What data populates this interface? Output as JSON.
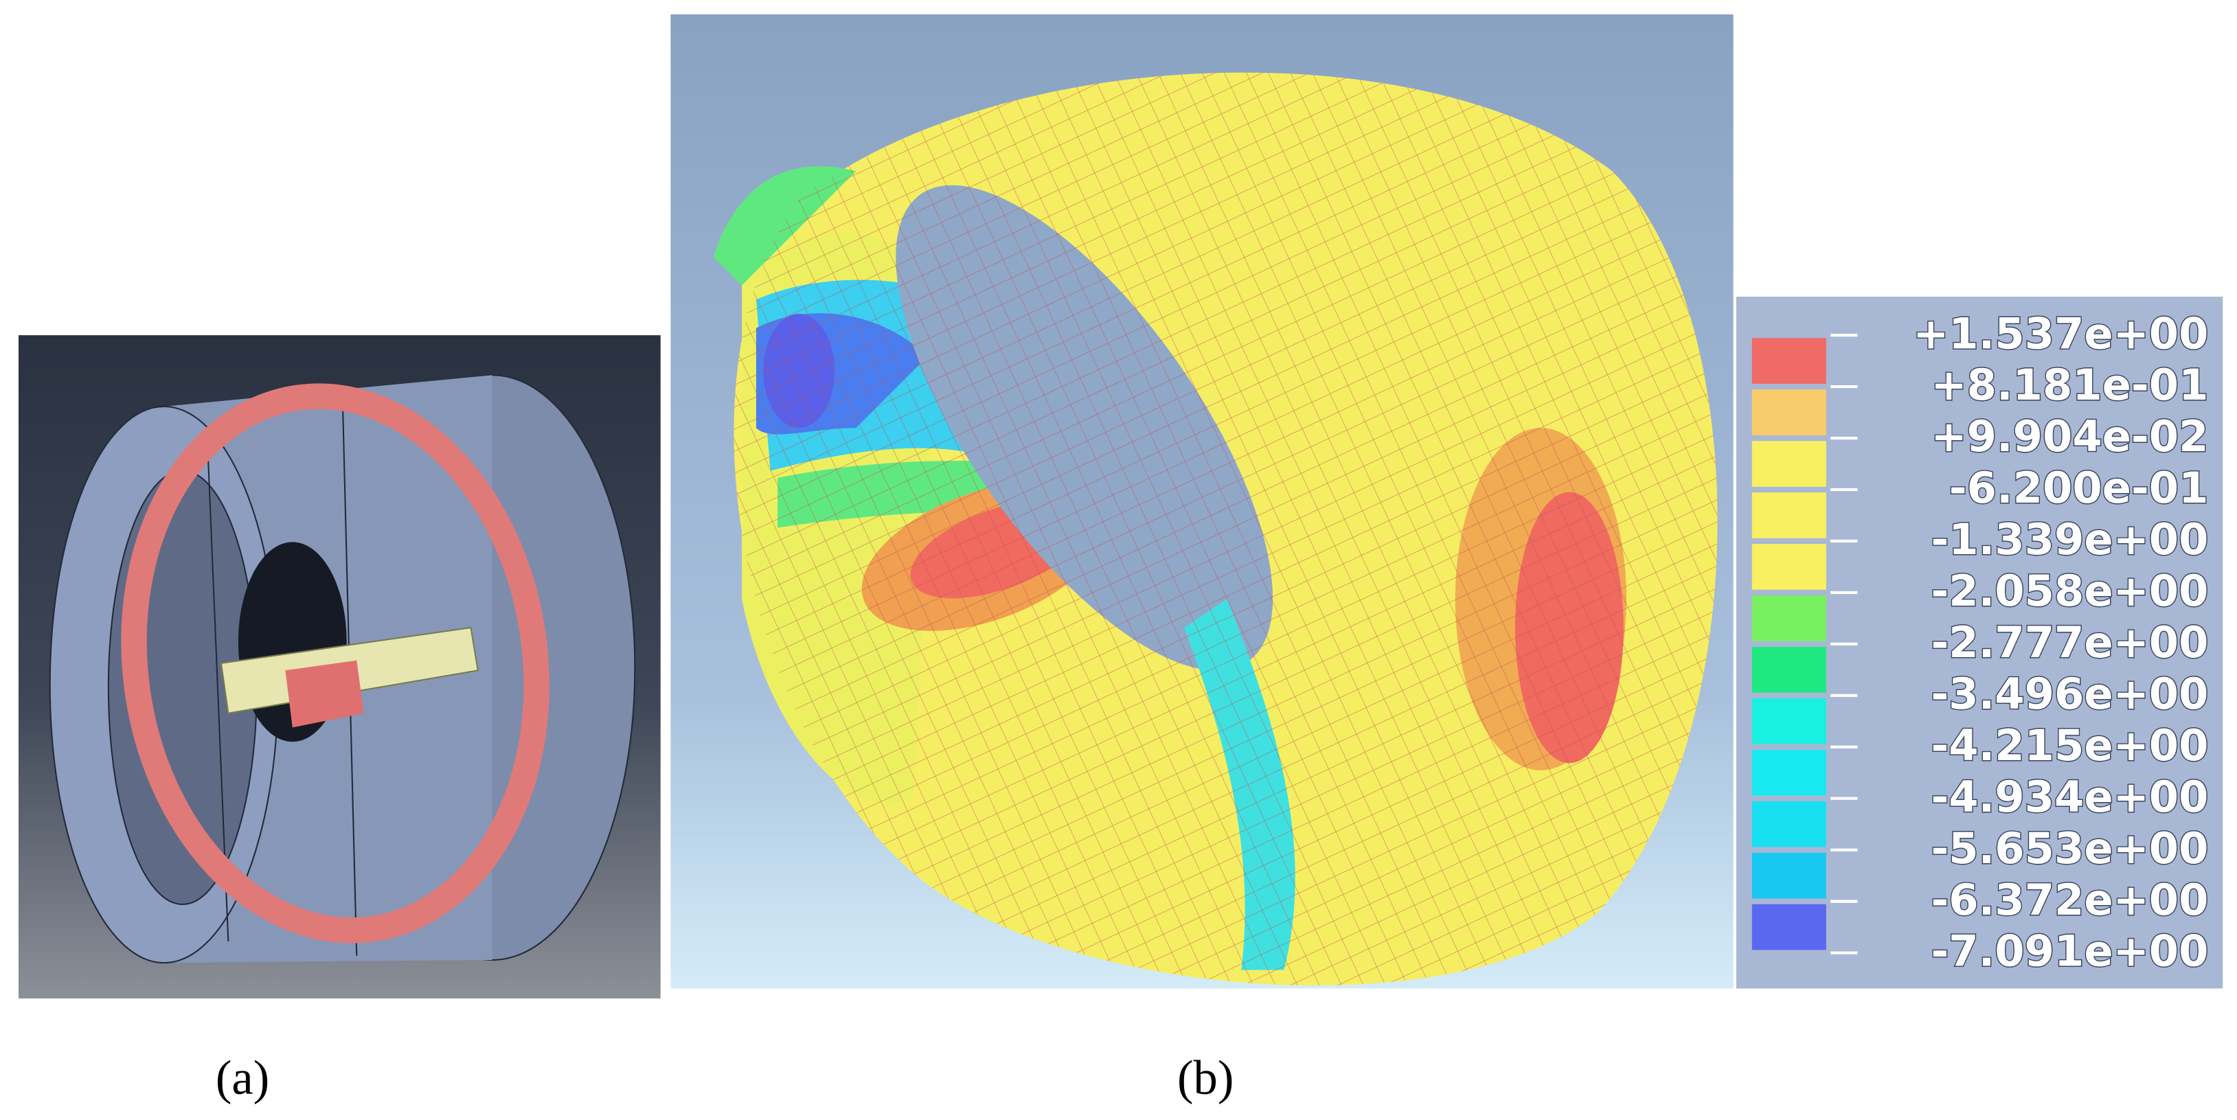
{
  "figure": {
    "panels": [
      {
        "caption": "(a)"
      },
      {
        "caption": "(b)",
        "legend": {
          "labels": [
            "+1.537e+00",
            "+8.181e-01",
            "+9.904e-02",
            "-6.200e-01",
            "-1.339e+00",
            "-2.058e+00",
            "-2.777e+00",
            "-3.496e+00",
            "-4.215e+00",
            "-4.934e+00",
            "-5.653e+00",
            "-6.372e+00",
            "-7.091e+00"
          ]
        }
      }
    ]
  }
}
